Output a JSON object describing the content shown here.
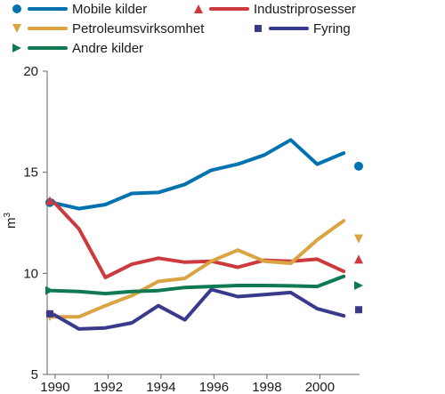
{
  "chart_data": {
    "type": "line",
    "ylabel": "m",
    "ylabel_sup": "3",
    "ylim": [
      5,
      20
    ],
    "yticks": [
      5,
      10,
      15,
      20
    ],
    "xlim": [
      1989.7,
      2001.5
    ],
    "xticks": [
      1990,
      1992,
      1994,
      1996,
      1998,
      2000
    ],
    "grid": false,
    "legend_position": "top",
    "series": [
      {
        "name": "Mobile kilder",
        "color": "#0072b0",
        "marker": "circle",
        "x": [
          1989.9,
          1990.9,
          1991.9,
          1992.9,
          1993.9,
          1994.9,
          1995.9,
          1996.9,
          1997.9,
          1998.9,
          1999.9,
          2000.9
        ],
        "y": [
          13.5,
          13.2,
          13.4,
          13.95,
          14.0,
          14.4,
          15.1,
          15.4,
          15.85,
          16.6,
          15.4,
          15.95
        ],
        "end_marker": 15.3
      },
      {
        "name": "Industriprosesser",
        "color": "#cd3a3e",
        "marker": "triangle-up",
        "x": [
          1989.9,
          1990.9,
          1991.9,
          1992.9,
          1993.9,
          1994.9,
          1995.9,
          1996.9,
          1997.9,
          1998.9,
          1999.9,
          2000.9
        ],
        "y": [
          13.6,
          12.2,
          9.8,
          10.45,
          10.75,
          10.55,
          10.6,
          10.3,
          10.65,
          10.6,
          10.7,
          10.1
        ],
        "end_marker": 10.7
      },
      {
        "name": "Petroleumsvirksomhet",
        "color": "#d9a441",
        "marker": "triangle-down",
        "x": [
          1989.9,
          1990.9,
          1991.9,
          1992.9,
          1993.9,
          1994.9,
          1995.9,
          1996.9,
          1997.9,
          1998.9,
          1999.9,
          2000.9
        ],
        "y": [
          7.85,
          7.85,
          8.4,
          8.9,
          9.6,
          9.75,
          10.6,
          11.15,
          10.6,
          10.5,
          11.65,
          12.6
        ],
        "end_marker": 11.7
      },
      {
        "name": "Fyring",
        "color": "#3a3a8c",
        "marker": "square",
        "x": [
          1989.9,
          1990.9,
          1991.9,
          1992.9,
          1993.9,
          1994.9,
          1995.9,
          1996.9,
          1997.9,
          1998.9,
          1999.9,
          2000.9
        ],
        "y": [
          8.0,
          7.25,
          7.3,
          7.55,
          8.4,
          7.7,
          9.2,
          8.85,
          8.95,
          9.05,
          8.25,
          7.9
        ],
        "end_marker": 8.2
      },
      {
        "name": "Andre kilder",
        "color": "#0f7a52",
        "marker": "triangle-right",
        "x": [
          1989.9,
          1990.9,
          1991.9,
          1992.9,
          1993.9,
          1994.9,
          1995.9,
          1996.9,
          1997.9,
          1998.9,
          1999.9,
          2000.9
        ],
        "y": [
          9.15,
          9.1,
          9.0,
          9.1,
          9.15,
          9.3,
          9.35,
          9.4,
          9.4,
          9.38,
          9.35,
          9.85
        ],
        "end_marker": 9.4
      }
    ]
  }
}
